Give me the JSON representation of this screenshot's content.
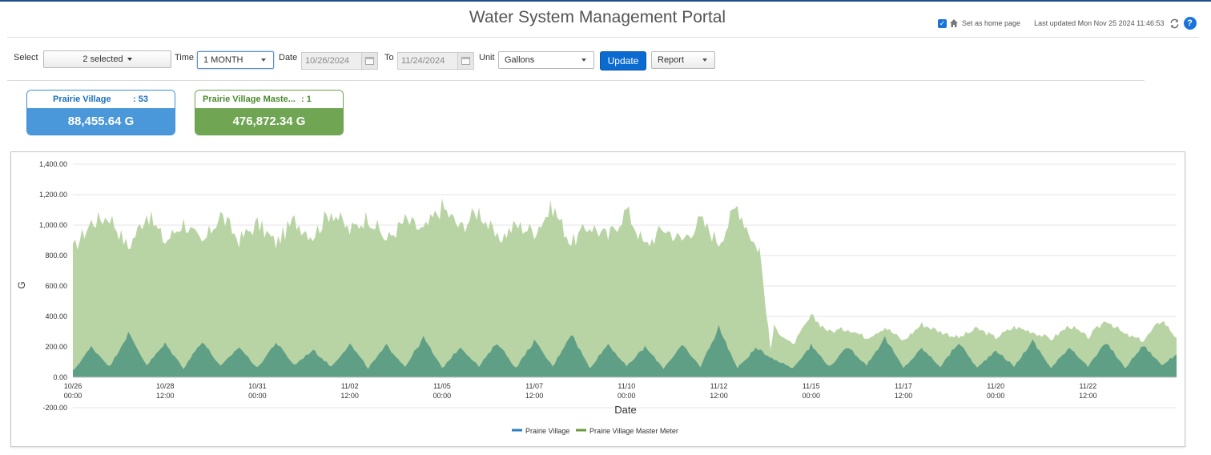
{
  "header": {
    "title": "Water System Management Portal",
    "home_checkbox_checked": true,
    "home_label": "Set as home page",
    "last_updated": "Last updated Mon Nov 25 2024 11:46:53"
  },
  "toolbar": {
    "select_label": "Select",
    "select_value": "2 selected",
    "time_label": "Time",
    "time_value": "1 MONTH",
    "date_label": "Date",
    "date_from": "10/26/2024",
    "to_label": "To",
    "date_to": "11/24/2024",
    "unit_label": "Unit",
    "unit_value": "Gallons",
    "update_label": "Update",
    "report_value": "Report"
  },
  "cards": [
    {
      "name": "Prairie Village",
      "count": ": 53",
      "total": "88,455.64 G",
      "color": "#4a97da"
    },
    {
      "name": "Prairie Village Maste...",
      "count": ": 1",
      "total": "476,872.34 G",
      "color": "#6fa553"
    }
  ],
  "chart_data": {
    "type": "area",
    "xlabel": "Date",
    "ylabel": "G",
    "ylim": [
      -200,
      1400
    ],
    "yticks": [
      "1,400.00",
      "1,200.00",
      "1,000.00",
      "800.00",
      "600.00",
      "400.00",
      "200.00",
      "0.00",
      "-200.00"
    ],
    "xticks": [
      {
        "d": "10/26",
        "t": "00:00"
      },
      {
        "d": "10/28",
        "t": "12:00"
      },
      {
        "d": "10/31",
        "t": "00:00"
      },
      {
        "d": "11/02",
        "t": "12:00"
      },
      {
        "d": "11/05",
        "t": "00:00"
      },
      {
        "d": "11/07",
        "t": "12:00"
      },
      {
        "d": "11/10",
        "t": "00:00"
      },
      {
        "d": "11/12",
        "t": "12:00"
      },
      {
        "d": "11/15",
        "t": "00:00"
      },
      {
        "d": "11/17",
        "t": "12:00"
      },
      {
        "d": "11/20",
        "t": "00:00"
      },
      {
        "d": "11/22",
        "t": "12:00"
      }
    ],
    "x_domain_days": [
      0,
      29.9
    ],
    "series": [
      {
        "name": "Prairie Village Master Meter",
        "color": "#b9d4a4",
        "legend_color": "#6a9a3c",
        "x_days": [
          0,
          0.5,
          1,
          1.5,
          2,
          2.5,
          3,
          3.5,
          4,
          4.5,
          5,
          5.5,
          6,
          6.5,
          7,
          7.5,
          8,
          8.5,
          9,
          9.5,
          10,
          10.5,
          11,
          11.5,
          12,
          12.5,
          13,
          13.5,
          14,
          14.5,
          15,
          15.5,
          16,
          16.5,
          17,
          17.5,
          18,
          18.5,
          18.6,
          18.9,
          19,
          19.5,
          20,
          20.5,
          21,
          21.5,
          22,
          22.5,
          23,
          23.5,
          24,
          24.5,
          25,
          25.5,
          26,
          26.5,
          27,
          27.5,
          28,
          28.5,
          29,
          29.5,
          29.9
        ],
        "values": [
          840,
          1020,
          1060,
          850,
          1080,
          890,
          1020,
          870,
          1070,
          900,
          1010,
          880,
          1030,
          930,
          1100,
          960,
          1060,
          900,
          1030,
          960,
          1120,
          980,
          1100,
          900,
          1000,
          960,
          1120,
          880,
          1000,
          920,
          1100,
          860,
          980,
          900,
          1030,
          890,
          1130,
          860,
          850,
          180,
          330,
          210,
          400,
          300,
          320,
          260,
          330,
          240,
          350,
          300,
          260,
          320,
          260,
          330,
          300,
          250,
          340,
          260,
          380,
          280,
          240,
          380,
          260
        ]
      },
      {
        "name": "Prairie Village",
        "color": "#5f9f86",
        "legend_color": "#2a7fc4",
        "x_days": [
          0,
          0.5,
          1,
          1.5,
          2,
          2.5,
          3,
          3.5,
          4,
          4.5,
          5,
          5.5,
          6,
          6.5,
          7,
          7.5,
          8,
          8.5,
          9,
          9.5,
          10,
          10.5,
          11,
          11.5,
          12,
          12.5,
          13,
          13.5,
          14,
          14.5,
          15,
          15.5,
          16,
          16.5,
          17,
          17.5,
          18,
          18.5,
          19,
          19.5,
          20,
          20.5,
          21,
          21.5,
          22,
          22.5,
          23,
          23.5,
          24,
          24.5,
          25,
          25.5,
          26,
          26.5,
          27,
          27.5,
          28,
          28.5,
          29,
          29.5,
          29.9
        ],
        "values": [
          40,
          200,
          70,
          290,
          80,
          220,
          60,
          240,
          70,
          200,
          60,
          230,
          80,
          180,
          70,
          220,
          60,
          210,
          70,
          260,
          60,
          200,
          70,
          230,
          60,
          240,
          70,
          290,
          60,
          220,
          70,
          200,
          60,
          210,
          70,
          330,
          60,
          190,
          120,
          60,
          210,
          70,
          200,
          80,
          260,
          60,
          190,
          70,
          230,
          60,
          180,
          70,
          240,
          60,
          200,
          70,
          230,
          60,
          210,
          80,
          150
        ]
      }
    ],
    "legend": [
      "Prairie Village",
      "Prairie Village Master Meter"
    ],
    "grid": true,
    "legend_position": "bottom"
  }
}
